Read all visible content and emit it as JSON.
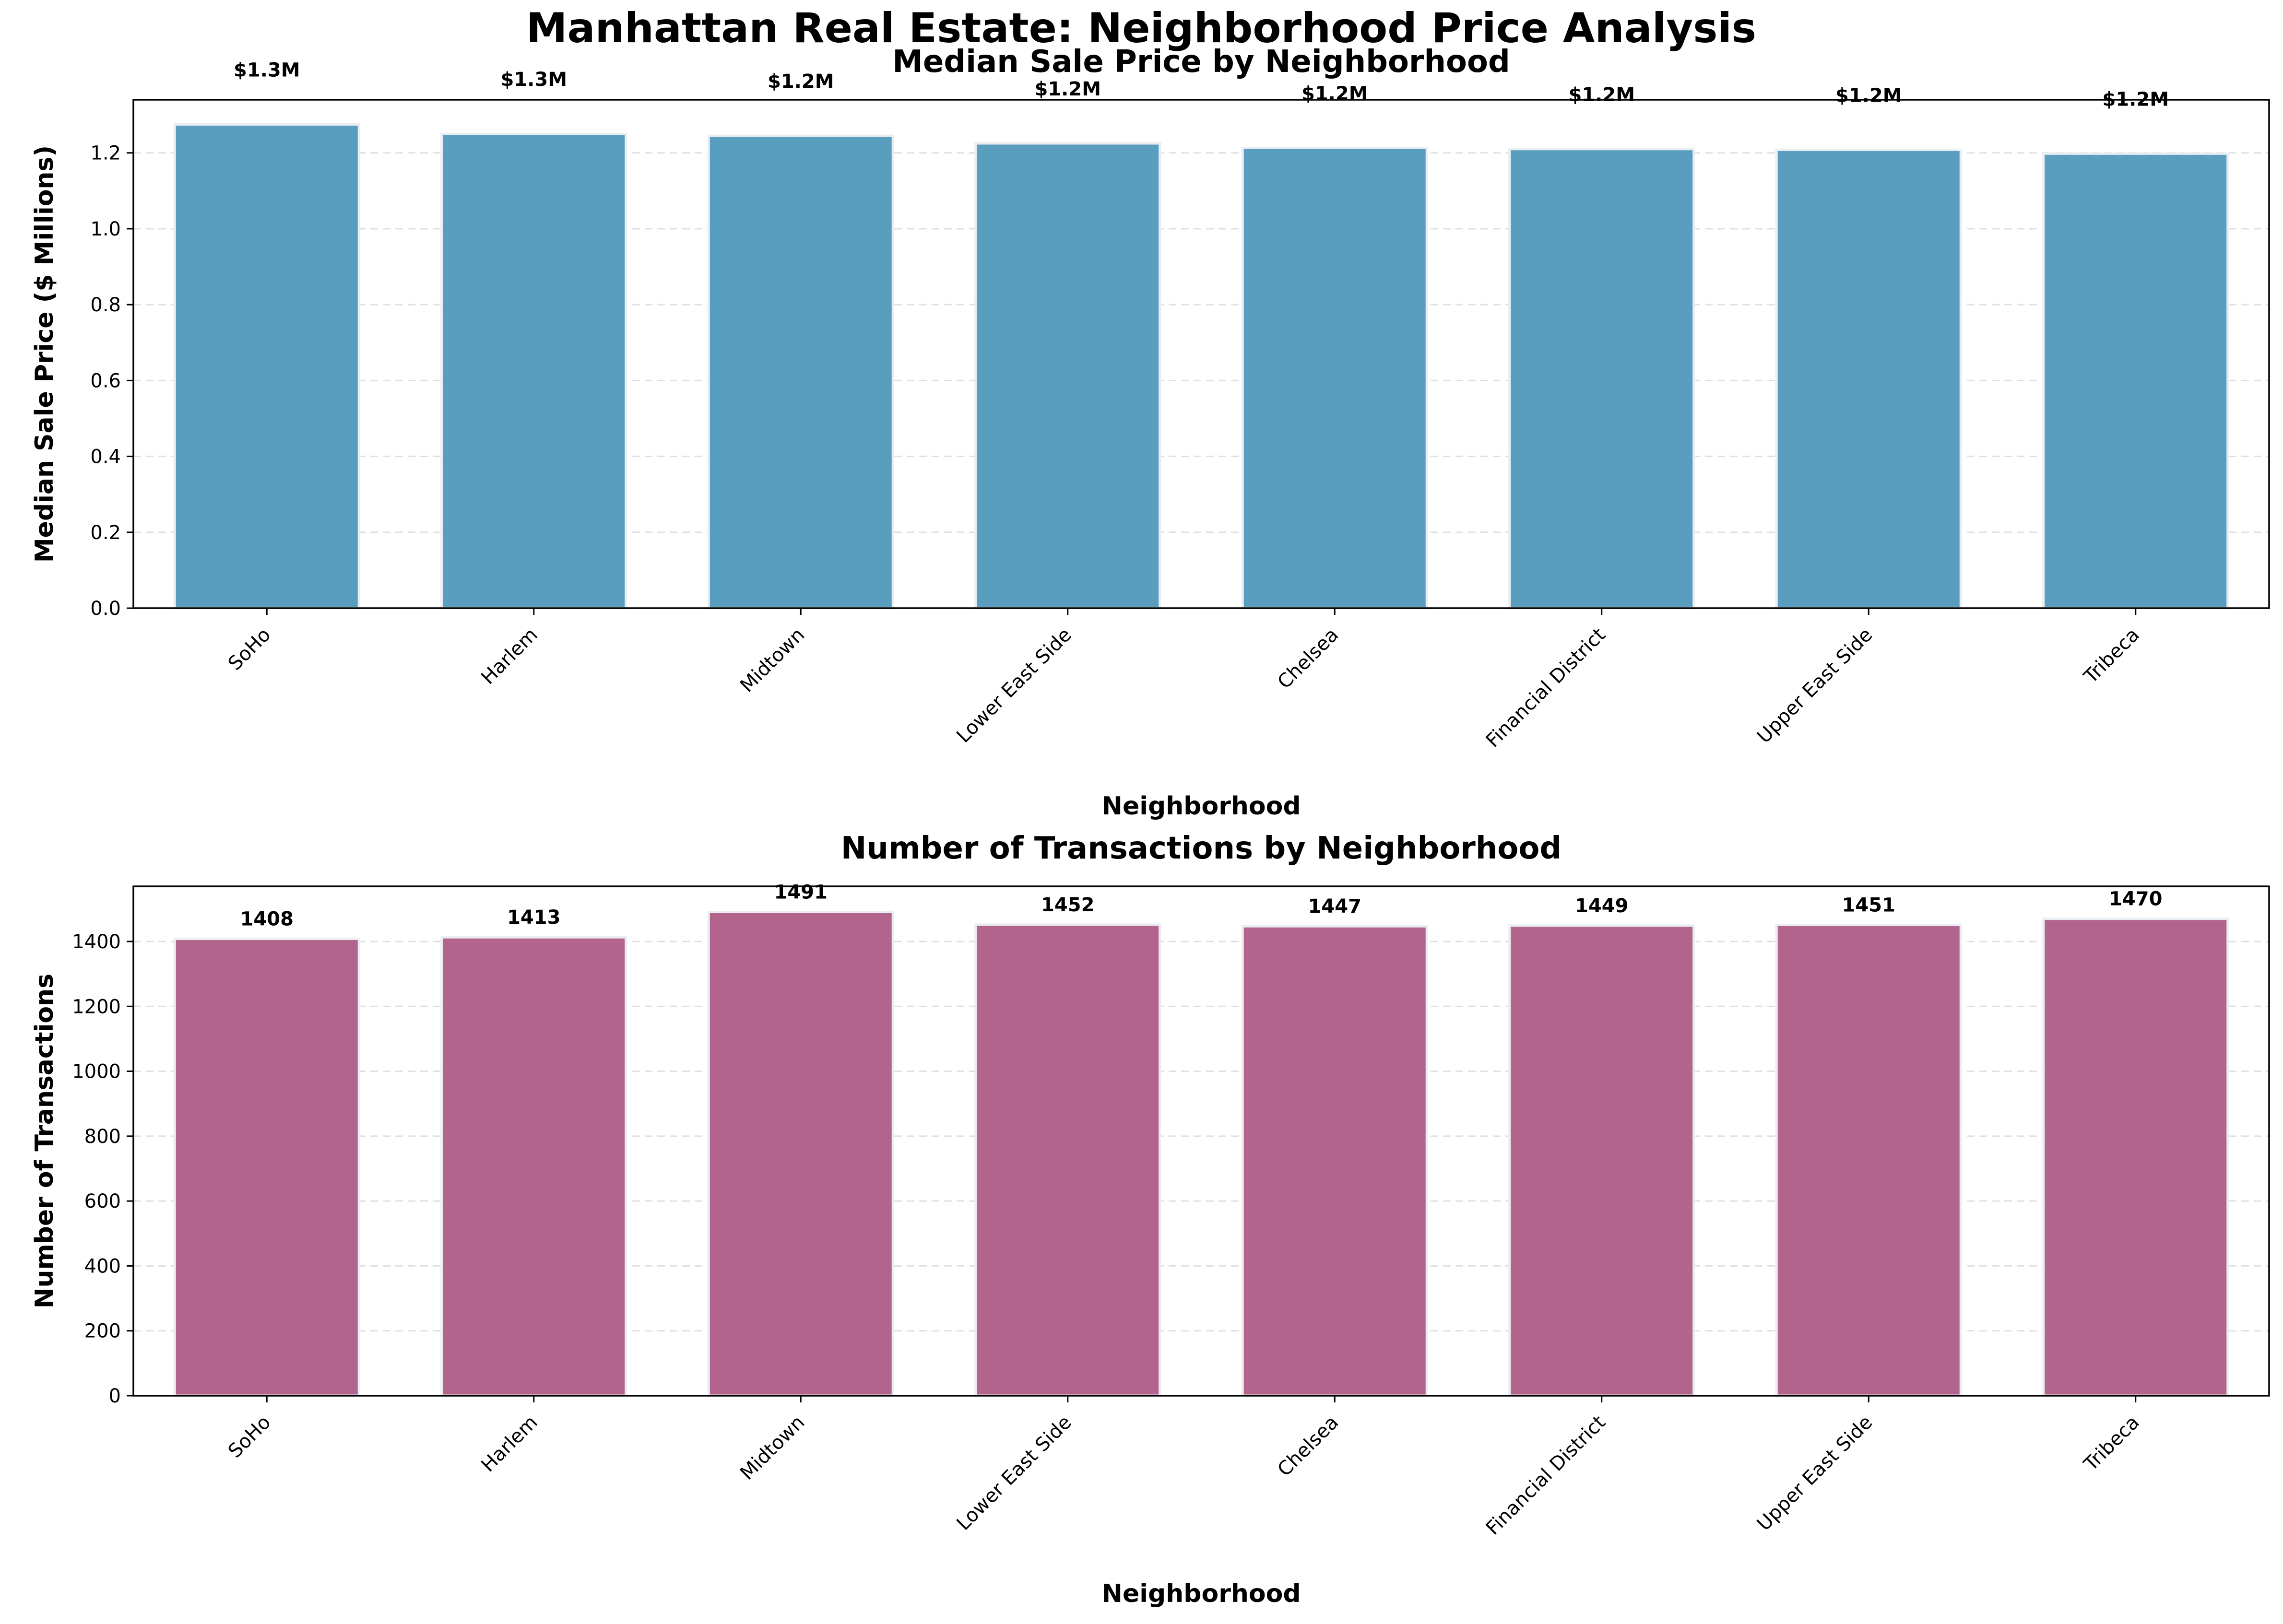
{
  "figure": {
    "title": "Manhattan Real Estate: Neighborhood Price Analysis"
  },
  "chart_data": [
    {
      "type": "bar",
      "title": "Median Sale Price by Neighborhood",
      "xlabel": "Neighborhood",
      "ylabel": "Median Sale Price ($ Millions)",
      "categories": [
        "SoHo",
        "Harlem",
        "Midtown",
        "Lower East Side",
        "Chelsea",
        "Financial District",
        "Upper East Side",
        "Tribeca"
      ],
      "values": [
        1.275,
        1.25,
        1.245,
        1.225,
        1.213,
        1.21,
        1.208,
        1.198
      ],
      "data_labels": [
        "$1.3M",
        "$1.3M",
        "$1.2M",
        "$1.2M",
        "$1.2M",
        "$1.2M",
        "$1.2M",
        "$1.2M"
      ],
      "yticks": [
        0.0,
        0.2,
        0.4,
        0.6,
        0.8,
        1.0,
        1.2
      ],
      "ytick_labels": [
        "0.0",
        "0.2",
        "0.4",
        "0.6",
        "0.8",
        "1.0",
        "1.2"
      ],
      "ylim": [
        0,
        1.34
      ],
      "grid": "y-dashed",
      "color": "#5a9ebf"
    },
    {
      "type": "bar",
      "title": "Number of Transactions by Neighborhood",
      "xlabel": "Neighborhood",
      "ylabel": "Number of Transactions",
      "categories": [
        "SoHo",
        "Harlem",
        "Midtown",
        "Lower East Side",
        "Chelsea",
        "Financial District",
        "Upper East Side",
        "Tribeca"
      ],
      "values": [
        1408,
        1413,
        1491,
        1452,
        1447,
        1449,
        1451,
        1470
      ],
      "data_labels": [
        "1408",
        "1413",
        "1491",
        "1452",
        "1447",
        "1449",
        "1451",
        "1470"
      ],
      "yticks": [
        0,
        200,
        400,
        600,
        800,
        1000,
        1200,
        1400
      ],
      "ytick_labels": [
        "0",
        "200",
        "400",
        "600",
        "800",
        "1000",
        "1200",
        "1400"
      ],
      "ylim": [
        0,
        1570
      ],
      "grid": "y-dashed",
      "color": "#b3648c"
    }
  ]
}
